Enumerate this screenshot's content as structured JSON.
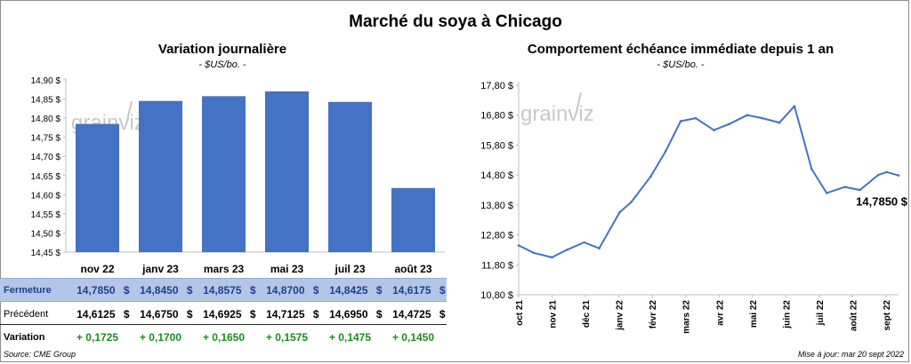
{
  "title": "Marché du soya à Chicago",
  "source": "Source: CME Group",
  "updated": "Mise à jour: mar 20 sept 2022",
  "watermark": "grainviz",
  "colors": {
    "bar": "#4472c4",
    "line": "#4472c4",
    "close_row": "#b4c6e7",
    "close_text": "#1f3f8f",
    "variation_text": "#1a8c1a"
  },
  "chart_data": [
    {
      "type": "bar",
      "title": "Variation journalière",
      "subtitle": "- $US/bo. -",
      "categories": [
        "nov 22",
        "janv 23",
        "mars 23",
        "mai 23",
        "juil 23",
        "août 23"
      ],
      "values": [
        14.785,
        14.845,
        14.8575,
        14.87,
        14.8425,
        14.6175
      ],
      "ylim": [
        14.45,
        14.9
      ],
      "yticks": [
        "14,45 $",
        "14,50 $",
        "14,55 $",
        "14,60 $",
        "14,65 $",
        "14,70 $",
        "14,75 $",
        "14,80 $",
        "14,85 $",
        "14,90 $"
      ],
      "grid": false,
      "table": {
        "rows": [
          {
            "label": "Fermeture",
            "values": [
              "14,7850",
              "14,8450",
              "14,8575",
              "14,8700",
              "14,8425",
              "14,6175"
            ],
            "unit": "$"
          },
          {
            "label": "Précédent",
            "values": [
              "14,6125",
              "14,6750",
              "14,6925",
              "14,7125",
              "14,6950",
              "14,4725"
            ],
            "unit": "$"
          },
          {
            "label": "Variation",
            "values": [
              "+ 0,1725",
              "+ 0,1700",
              "+ 0,1650",
              "+ 0,1575",
              "+ 0,1475",
              "+ 0,1450"
            ]
          }
        ]
      }
    },
    {
      "type": "line",
      "title": "Comportement  échéance immédiate depuis 1 an",
      "subtitle": "- $US/bo. -",
      "xlabels": [
        "oct 21",
        "nov 21",
        "déc 21",
        "janv 22",
        "févr 22",
        "mars 22",
        "avr 22",
        "mai 22",
        "juin 22",
        "juil 22",
        "août 22",
        "sept 22"
      ],
      "yticks": [
        "10,80 $",
        "11,80 $",
        "12,80 $",
        "13,80 $",
        "14,80 $",
        "15,80 $",
        "16,80 $",
        "17,80 $"
      ],
      "ylim": [
        10.8,
        17.8
      ],
      "last_value_label": "14,7850 $",
      "x": [
        "2021-10-01",
        "2021-10-15",
        "2021-11-01",
        "2021-11-15",
        "2021-12-01",
        "2021-12-15",
        "2022-01-03",
        "2022-01-14",
        "2022-02-01",
        "2022-02-15",
        "2022-03-01",
        "2022-03-15",
        "2022-04-01",
        "2022-04-15",
        "2022-05-02",
        "2022-05-16",
        "2022-06-01",
        "2022-06-15",
        "2022-07-01",
        "2022-07-15",
        "2022-08-01",
        "2022-08-15",
        "2022-09-01",
        "2022-09-09",
        "2022-09-20"
      ],
      "values": [
        12.45,
        12.2,
        12.05,
        12.3,
        12.55,
        12.35,
        13.55,
        13.9,
        14.75,
        15.6,
        16.6,
        16.7,
        16.3,
        16.5,
        16.8,
        16.7,
        16.55,
        17.1,
        15.0,
        14.2,
        14.4,
        14.3,
        14.8,
        14.9,
        14.785
      ]
    }
  ]
}
